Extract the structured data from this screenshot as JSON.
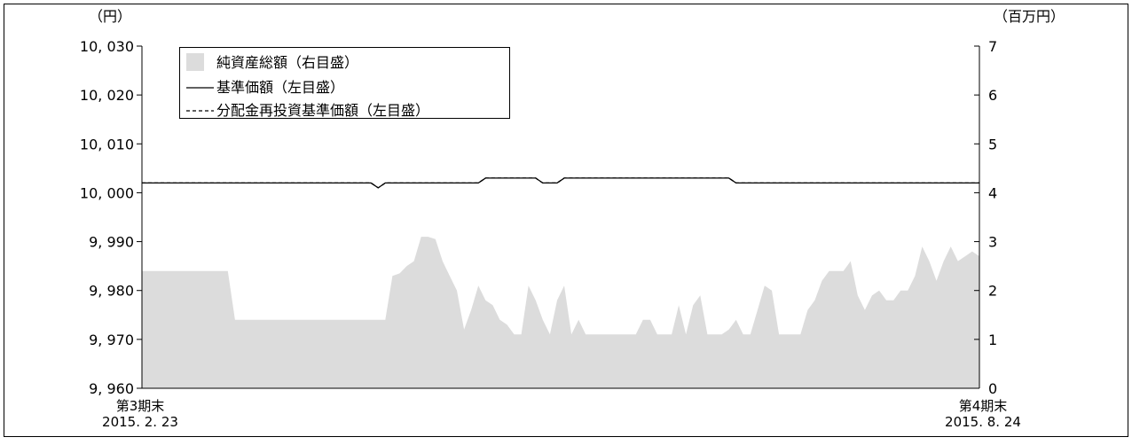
{
  "chart_data": {
    "type": "line",
    "left_axis": {
      "unit": "（円）",
      "ylim": [
        9960,
        10030
      ],
      "ticks": [
        9960,
        9970,
        9980,
        9990,
        10000,
        10010,
        10020,
        10030
      ],
      "tick_labels": [
        "9, 960",
        "9, 970",
        "9, 980",
        "9, 990",
        "10, 000",
        "10, 010",
        "10, 020",
        "10, 030"
      ]
    },
    "right_axis": {
      "unit": "（百万円）",
      "ylim": [
        0,
        7
      ],
      "ticks": [
        0,
        1,
        2,
        3,
        4,
        5,
        6,
        7
      ],
      "tick_labels": [
        "0",
        "1",
        "2",
        "3",
        "4",
        "5",
        "6",
        "7"
      ]
    },
    "x_axis": {
      "start_label": "第3期末",
      "start_date": "2015. 2. 23",
      "end_label": "第4期末",
      "end_date": "2015. 8. 24"
    },
    "legend": [
      "純資産総額（右目盛）",
      "基準価額（左目盛）",
      "分配金再投資基準価額（左目盛）"
    ],
    "legend_position": "top-left",
    "grid": false,
    "colors": {
      "area": "#dcdcdc",
      "line": "#000000",
      "axis": "#000000"
    },
    "series": [
      {
        "name": "純資産総額（右目盛）",
        "kind": "area",
        "axis": "right",
        "values": [
          2.4,
          2.4,
          2.4,
          2.4,
          2.4,
          2.4,
          2.4,
          2.4,
          2.4,
          2.4,
          2.4,
          2.4,
          2.4,
          1.4,
          1.4,
          1.4,
          1.4,
          1.4,
          1.4,
          1.4,
          1.4,
          1.4,
          1.4,
          1.4,
          1.4,
          1.4,
          1.4,
          1.4,
          1.4,
          1.4,
          1.4,
          1.4,
          1.4,
          1.4,
          1.4,
          2.3,
          2.35,
          2.5,
          2.6,
          3.1,
          3.1,
          3.05,
          2.6,
          2.3,
          2.0,
          1.2,
          1.6,
          2.1,
          1.8,
          1.7,
          1.4,
          1.3,
          1.1,
          1.1,
          2.1,
          1.8,
          1.4,
          1.1,
          1.8,
          2.1,
          1.1,
          1.4,
          1.1,
          1.1,
          1.1,
          1.1,
          1.1,
          1.1,
          1.1,
          1.1,
          1.4,
          1.4,
          1.1,
          1.1,
          1.1,
          1.7,
          1.1,
          1.7,
          1.9,
          1.1,
          1.1,
          1.1,
          1.2,
          1.4,
          1.1,
          1.1,
          1.6,
          2.1,
          2.0,
          1.1,
          1.1,
          1.1,
          1.1,
          1.6,
          1.8,
          2.2,
          2.4,
          2.4,
          2.4,
          2.6,
          1.9,
          1.6,
          1.9,
          2.0,
          1.8,
          1.8,
          2.0,
          2.0,
          2.3,
          2.9,
          2.6,
          2.2,
          2.6,
          2.9,
          2.6,
          2.7,
          2.8,
          2.7
        ]
      },
      {
        "name": "基準価額（左目盛）",
        "kind": "line",
        "axis": "left",
        "values": [
          10002,
          10002,
          10002,
          10002,
          10002,
          10002,
          10002,
          10002,
          10002,
          10002,
          10002,
          10002,
          10002,
          10002,
          10002,
          10002,
          10002,
          10002,
          10002,
          10002,
          10002,
          10002,
          10002,
          10002,
          10002,
          10002,
          10002,
          10002,
          10002,
          10002,
          10002,
          10002,
          10002,
          10001,
          10002,
          10002,
          10002,
          10002,
          10002,
          10002,
          10002,
          10002,
          10002,
          10002,
          10002,
          10002,
          10002,
          10002,
          10003,
          10003,
          10003,
          10003,
          10003,
          10003,
          10003,
          10003,
          10002,
          10002,
          10002,
          10003,
          10003,
          10003,
          10003,
          10003,
          10003,
          10003,
          10003,
          10003,
          10003,
          10003,
          10003,
          10003,
          10003,
          10003,
          10003,
          10003,
          10003,
          10003,
          10003,
          10003,
          10003,
          10003,
          10003,
          10002,
          10002,
          10002,
          10002,
          10002,
          10002,
          10002,
          10002,
          10002,
          10002,
          10002,
          10002,
          10002,
          10002,
          10002,
          10002,
          10002,
          10002,
          10002,
          10002,
          10002,
          10002,
          10002,
          10002,
          10002,
          10002,
          10002,
          10002,
          10002,
          10002,
          10002,
          10002,
          10002,
          10002,
          10002
        ]
      },
      {
        "name": "分配金再投資基準価額（左目盛）",
        "kind": "dashed-line",
        "axis": "left",
        "values": [
          10002,
          10002,
          10002,
          10002,
          10002,
          10002,
          10002,
          10002,
          10002,
          10002,
          10002,
          10002,
          10002,
          10002,
          10002,
          10002,
          10002,
          10002,
          10002,
          10002,
          10002,
          10002,
          10002,
          10002,
          10002,
          10002,
          10002,
          10002,
          10002,
          10002,
          10002,
          10002,
          10002,
          10001,
          10002,
          10002,
          10002,
          10002,
          10002,
          10002,
          10002,
          10002,
          10002,
          10002,
          10002,
          10002,
          10002,
          10002,
          10003,
          10003,
          10003,
          10003,
          10003,
          10003,
          10003,
          10003,
          10002,
          10002,
          10002,
          10003,
          10003,
          10003,
          10003,
          10003,
          10003,
          10003,
          10003,
          10003,
          10003,
          10003,
          10003,
          10003,
          10003,
          10003,
          10003,
          10003,
          10003,
          10003,
          10003,
          10003,
          10003,
          10003,
          10003,
          10002,
          10002,
          10002,
          10002,
          10002,
          10002,
          10002,
          10002,
          10002,
          10002,
          10002,
          10002,
          10002,
          10002,
          10002,
          10002,
          10002,
          10002,
          10002,
          10002,
          10002,
          10002,
          10002,
          10002,
          10002,
          10002,
          10002,
          10002,
          10002,
          10002,
          10002,
          10002,
          10002,
          10002,
          10002
        ]
      }
    ]
  }
}
